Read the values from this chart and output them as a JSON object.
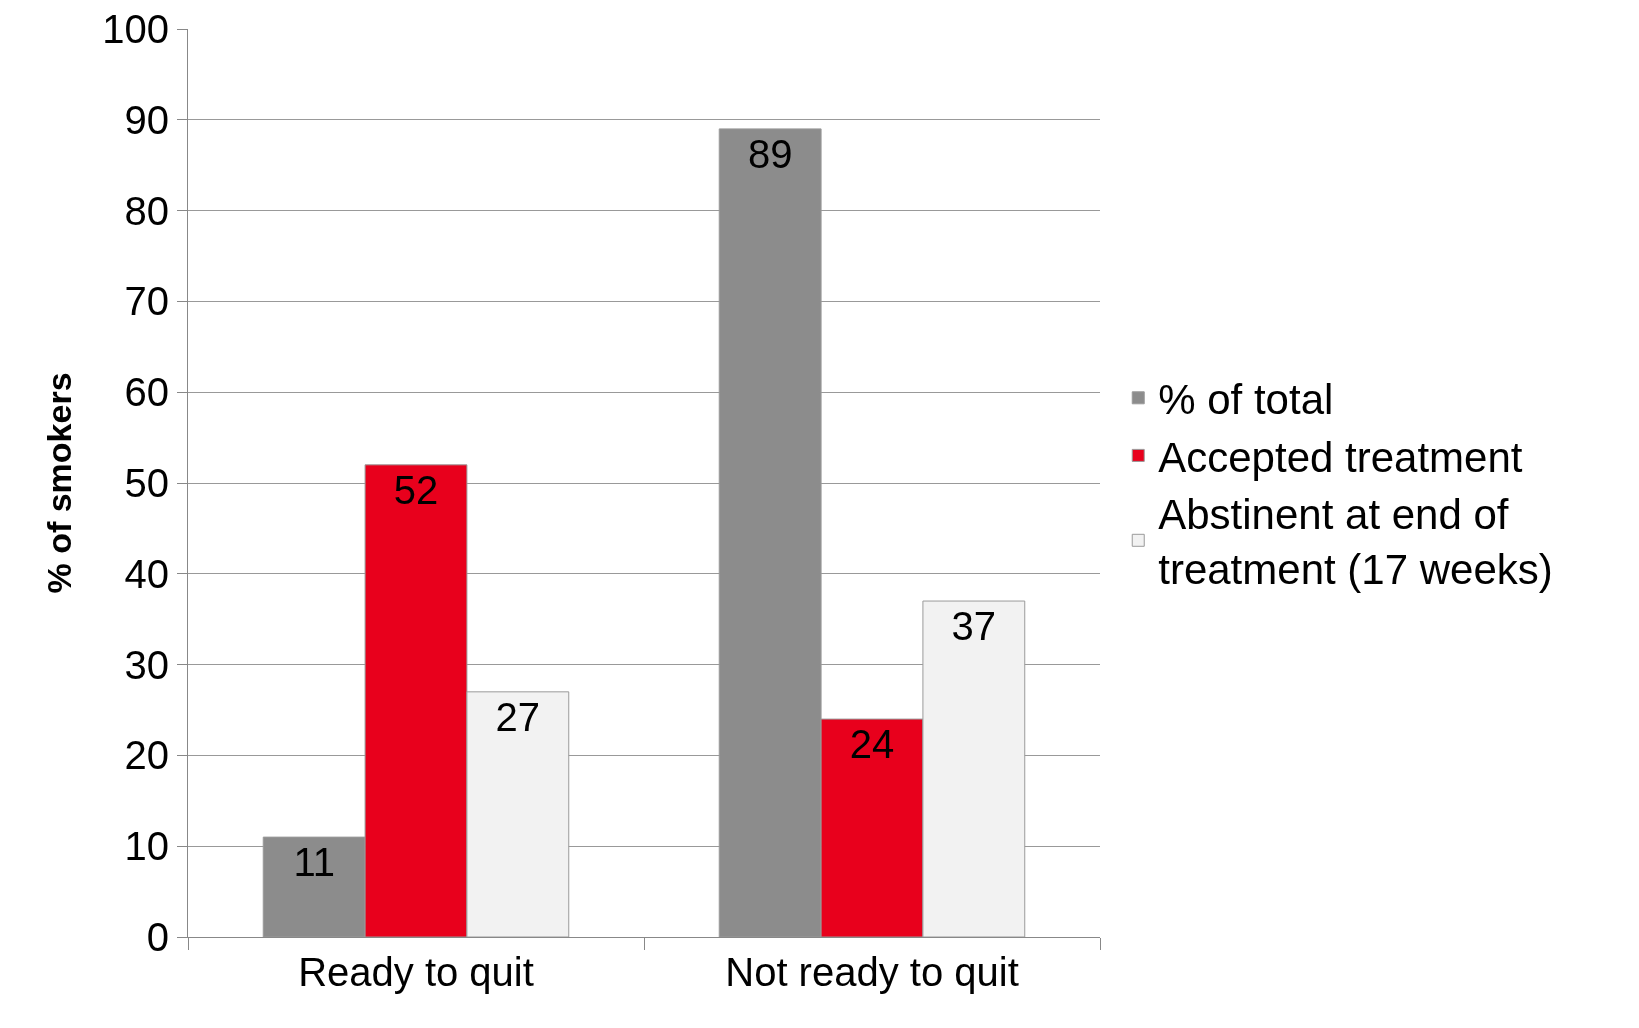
{
  "chart_data": {
    "type": "bar",
    "ylabel": "% of smokers",
    "categories": [
      "Ready to quit",
      "Not ready to quit"
    ],
    "series": [
      {
        "name": "% of total",
        "color": "#8c8c8c",
        "values": [
          11,
          89
        ]
      },
      {
        "name": "Accepted treatment",
        "color": "#e8001c",
        "values": [
          52,
          24
        ]
      },
      {
        "name": "Abstinent at end of treatment (17 weeks)",
        "color": "#f2f2f2",
        "values": [
          27,
          37
        ]
      }
    ],
    "ylim": [
      0,
      100
    ],
    "yticks": [
      0,
      10,
      20,
      30,
      40,
      50,
      60,
      70,
      80,
      90,
      100
    ],
    "grid": "y",
    "legend": "right",
    "data_labels": true
  }
}
